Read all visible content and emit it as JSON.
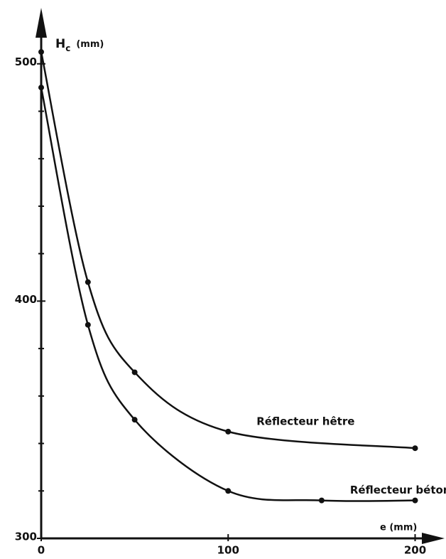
{
  "chart_data": {
    "type": "line",
    "ylabel": {
      "main": "H",
      "sub": "c",
      "unit": "(mm)"
    },
    "xlabel": "e (mm)",
    "xlim": [
      0,
      215
    ],
    "xticks": [
      0,
      100,
      200
    ],
    "ylim": [
      300,
      520
    ],
    "yticks": [
      300,
      400,
      500
    ],
    "yminorticks": [
      320,
      340,
      360,
      380,
      420,
      440,
      460,
      480
    ],
    "color": "#111111",
    "series": [
      {
        "name": "Réflecteur hêtre",
        "x": [
          0,
          25,
          50,
          100,
          200
        ],
        "values": [
          505,
          408,
          370,
          345,
          338
        ]
      },
      {
        "name": "Réflecteur béton",
        "x": [
          0,
          25,
          50,
          100,
          150,
          200
        ],
        "values": [
          490,
          390,
          350,
          320,
          316,
          316
        ]
      }
    ]
  }
}
